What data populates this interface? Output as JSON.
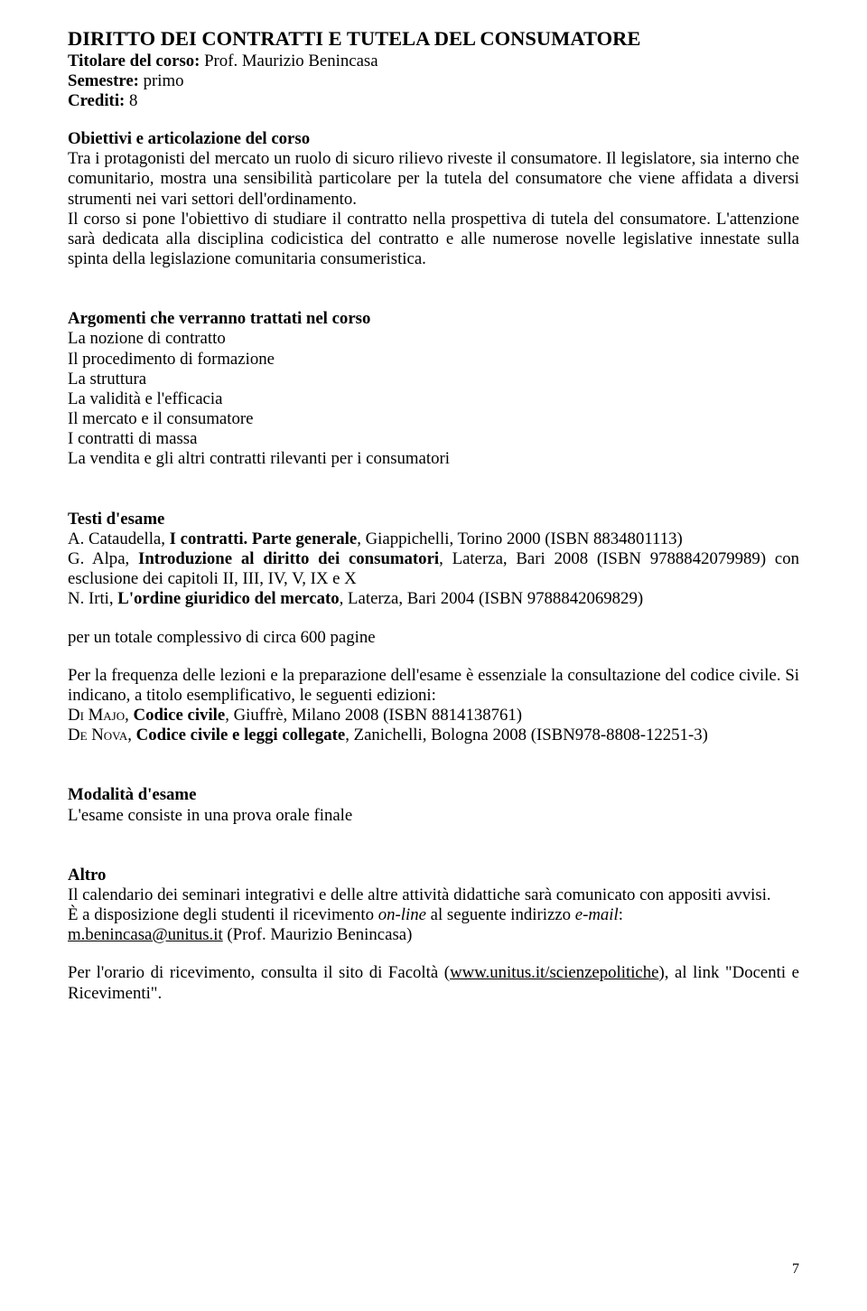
{
  "title": "DIRITTO DEI CONTRATTI E TUTELA DEL CONSUMATORE",
  "titolare_label": "Titolare del corso:",
  "titolare_value": " Prof. Maurizio Benincasa",
  "semestre_label": "Semestre:",
  "semestre_value": " primo",
  "crediti_label": "Crediti:",
  "crediti_value": " 8",
  "obiettivi_heading": "Obiettivi e articolazione del corso",
  "obiettivi_body": "Tra i protagonisti del mercato un ruolo di sicuro rilievo riveste il consumatore. Il legislatore, sia interno che comunitario, mostra una sensibilità particolare per la tutela del consumatore che viene affidata a diversi strumenti nei vari settori dell'ordinamento.",
  "obiettivi_body2": "Il corso si pone l'obiettivo di studiare il contratto nella prospettiva di tutela del consumatore. L'attenzione sarà dedicata alla disciplina codicistica del contratto e alle numerose novelle legislative innestate sulla spinta della legislazione comunitaria consumeristica.",
  "argomenti_heading": "Argomenti che verranno trattati nel corso",
  "argomenti_items": [
    "La nozione di contratto",
    "Il procedimento di formazione",
    "La struttura",
    "La validità e l'efficacia",
    "Il mercato e il consumatore",
    "I contratti di massa",
    "La vendita e gli altri contratti rilevanti per i consumatori"
  ],
  "testi_heading": "Testi d'esame",
  "testi1_author": "A. Cataudella, ",
  "testi1_title": "I contratti. Parte generale",
  "testi1_rest": ", Giappichelli, Torino 2000 (ISBN 8834801113)",
  "testi2_author": "G. Alpa, ",
  "testi2_title": "Introduzione al diritto dei consumatori",
  "testi2_rest": ", Laterza, Bari 2008 (ISBN 9788842079989) con esclusione dei capitoli II, III, IV, V, IX e X",
  "testi3_author": "N. Irti, ",
  "testi3_title": "L'ordine giuridico del mercato",
  "testi3_rest": ", Laterza, Bari 2004 (ISBN 9788842069829)",
  "totale_pagine": "per un totale complessivo di circa 600 pagine",
  "frequenza": "Per la frequenza delle lezioni e la preparazione dell'esame è essenziale la consultazione del codice civile. Si indicano, a titolo esemplificativo, le seguenti edizioni:",
  "codice1_pre": "Di Majo",
  "codice1_sep": ", ",
  "codice1_title": "Codice civile",
  "codice1_rest": ", Giuffrè, Milano 2008 (ISBN 8814138761)",
  "codice2_pre": "De Nova",
  "codice2_sep": ", ",
  "codice2_title": "Codice civile e leggi collegate",
  "codice2_rest": ", Zanichelli, Bologna 2008 (ISBN978-8808-12251-3)",
  "modalita_heading": "Modalità d'esame",
  "modalita_body": "L'esame consiste in una prova orale finale",
  "altro_heading": "Altro",
  "altro_body1": "Il calendario dei seminari integrativi e delle altre attività didattiche sarà comunicato con appositi avvisi.",
  "altro_body2_pre": "È a disposizione degli studenti il ricevimento ",
  "altro_body2_online": "on-line",
  "altro_body2_mid": " al seguente indirizzo ",
  "altro_body2_email": "e-mail",
  "altro_body2_post": ":",
  "email_link": "m.benincasa@unitus.it",
  "email_post": "  (Prof. Maurizio Benincasa)",
  "orario_pre": "Per l'orario di ricevimento, consulta il sito di Facoltà (",
  "orario_link": "www.unitus.it/scienzepolitiche",
  "orario_post": "), al link \"Docenti e Ricevimenti\".",
  "page_number": "7"
}
